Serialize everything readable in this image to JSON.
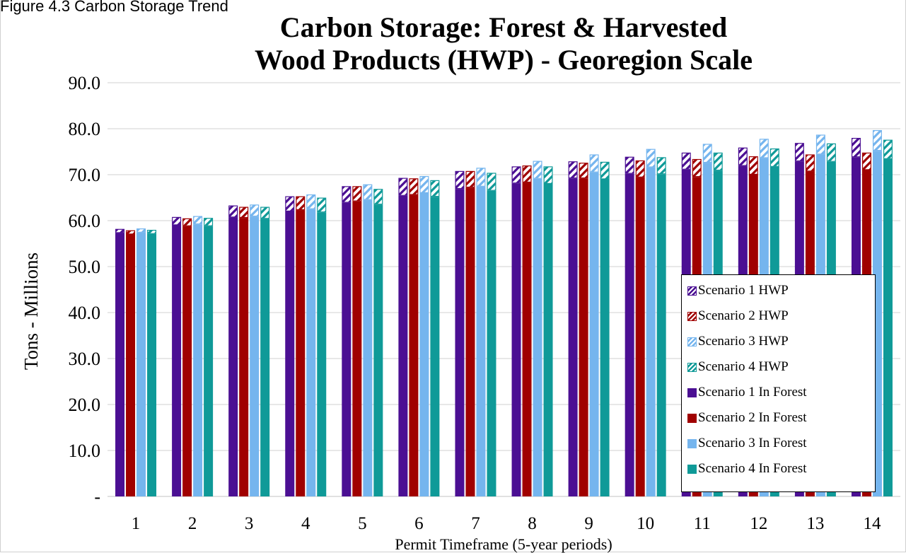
{
  "caption": "Figure 4.3 Carbon Storage Trend",
  "chart_data": {
    "type": "bar",
    "stacked": true,
    "title": [
      "Carbon Storage:  Forest & Harvested",
      "Wood Products (HWP) - Georegion Scale"
    ],
    "xlabel": "Permit Timeframe (5-year periods)",
    "ylabel": "Tons - Millions",
    "ylim": [
      0,
      90
    ],
    "yticks": [
      {
        "value": 0,
        "label": "-"
      },
      {
        "value": 10,
        "label": "10.0"
      },
      {
        "value": 20,
        "label": "20.0"
      },
      {
        "value": 30,
        "label": "30.0"
      },
      {
        "value": 40,
        "label": "40.0"
      },
      {
        "value": 50,
        "label": "50.0"
      },
      {
        "value": 60,
        "label": "60.0"
      },
      {
        "value": 70,
        "label": "70.0"
      },
      {
        "value": 80,
        "label": "80.0"
      },
      {
        "value": 90,
        "label": "90.0"
      }
    ],
    "grid": true,
    "legend_position": "bottom-right",
    "categories": [
      "1",
      "2",
      "3",
      "4",
      "5",
      "6",
      "7",
      "8",
      "9",
      "10",
      "11",
      "12",
      "13",
      "14"
    ],
    "scenarios": [
      {
        "color": "#4b0f93",
        "forest_name": "Scenario 1 In Forest",
        "hwp_name": "Scenario 1 HWP",
        "totals": [
          58.2,
          60.8,
          63.3,
          65.3,
          67.5,
          69.3,
          70.8,
          71.8,
          72.9,
          73.9,
          74.8,
          75.9,
          76.9,
          78.0
        ],
        "hwp": [
          0.9,
          1.8,
          2.6,
          3.3,
          3.6,
          3.9,
          3.9,
          3.7,
          3.7,
          3.7,
          3.7,
          4.0,
          4.0,
          4.2
        ]
      },
      {
        "color": "#a00000",
        "forest_name": "Scenario 2 In Forest",
        "hwp_name": "Scenario 2 HWP",
        "totals": [
          57.9,
          60.5,
          63.0,
          65.3,
          67.5,
          69.2,
          70.8,
          72.0,
          72.6,
          73.1,
          73.4,
          74.0,
          74.4,
          74.8
        ],
        "hwp": [
          0.9,
          1.7,
          2.4,
          3.0,
          3.3,
          3.6,
          3.6,
          3.7,
          3.4,
          3.7,
          3.9,
          4.0,
          3.7,
          3.8
        ]
      },
      {
        "color": "#75b5ee",
        "forest_name": "Scenario 3 In Forest",
        "hwp_name": "Scenario 3 HWP",
        "totals": [
          58.3,
          61.0,
          63.5,
          65.7,
          67.9,
          69.7,
          71.5,
          73.0,
          74.4,
          75.6,
          76.7,
          77.8,
          78.7,
          79.7
        ],
        "hwp": [
          0.9,
          1.8,
          2.6,
          3.2,
          3.4,
          3.7,
          4.1,
          3.9,
          3.9,
          4.0,
          4.1,
          4.2,
          4.3,
          4.5
        ]
      },
      {
        "color": "#0f9a98",
        "forest_name": "Scenario 4 In Forest",
        "hwp_name": "Scenario 4 HWP",
        "totals": [
          58.0,
          60.6,
          63.0,
          65.0,
          66.9,
          68.8,
          70.4,
          71.8,
          72.8,
          73.8,
          74.8,
          75.7,
          76.8,
          77.6
        ],
        "hwp": [
          0.9,
          1.8,
          2.6,
          3.2,
          3.4,
          3.6,
          3.9,
          3.8,
          3.8,
          3.7,
          3.9,
          4.0,
          4.0,
          4.2
        ]
      }
    ]
  }
}
